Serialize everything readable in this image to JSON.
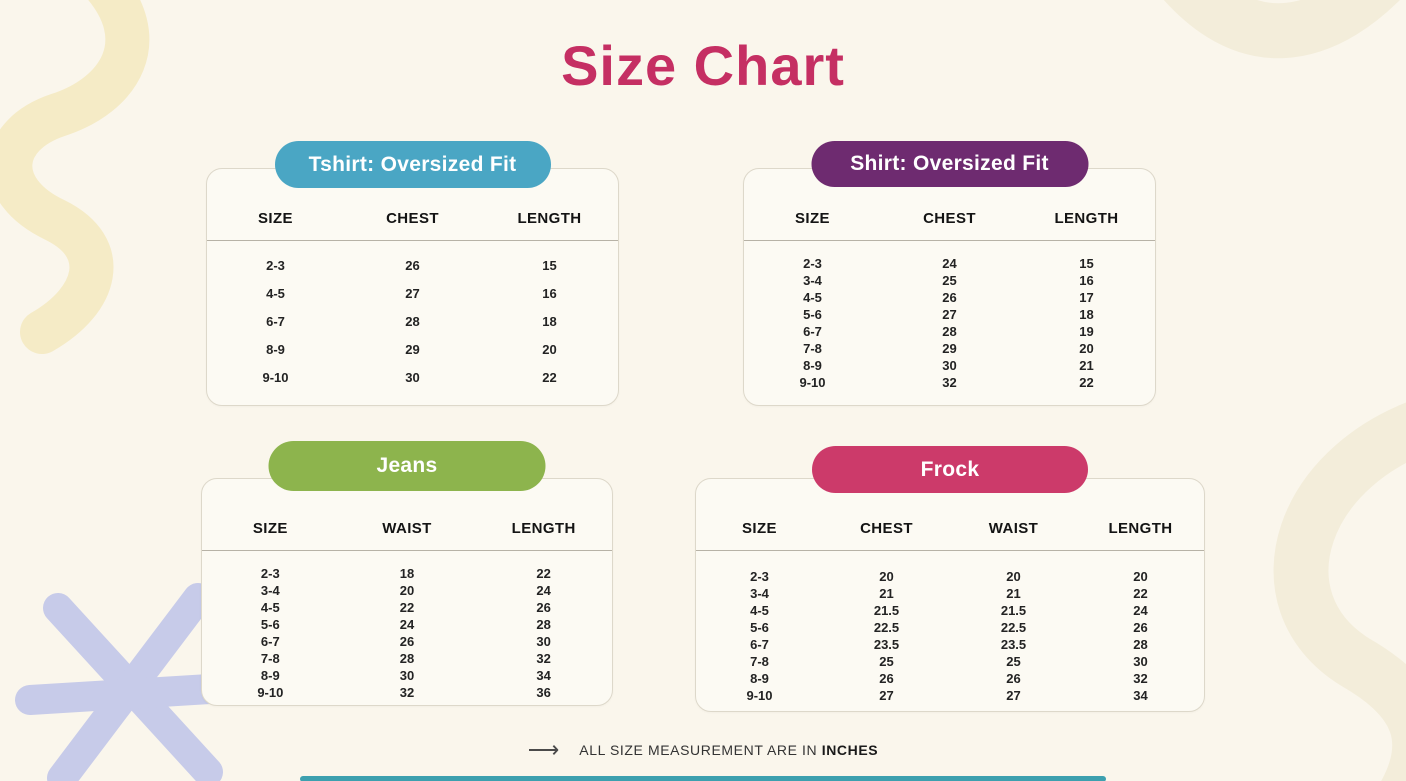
{
  "page": {
    "title": "Size Chart"
  },
  "colors": {
    "background": "#faf6ec",
    "title": "#c52f63",
    "tshirt_accent": "#4aa6c4",
    "shirt_accent": "#6e2b70",
    "jeans_accent": "#8db44d",
    "frock_accent": "#cc3a6a"
  },
  "icons": {
    "right_arrow": "⟶"
  },
  "footer": {
    "text": "ALL SIZE MEASUREMENT ARE IN",
    "unit": "INCHES"
  },
  "chart_data": [
    {
      "type": "table",
      "title": "Tshirt: Oversized Fit",
      "accent": "#4aa6c4",
      "columns": [
        "SIZE",
        "CHEST",
        "LENGTH"
      ],
      "rows": [
        [
          "2-3",
          "26",
          "15"
        ],
        [
          "4-5",
          "27",
          "16"
        ],
        [
          "6-7",
          "28",
          "18"
        ],
        [
          "8-9",
          "29",
          "20"
        ],
        [
          "9-10",
          "30",
          "22"
        ]
      ]
    },
    {
      "type": "table",
      "title": "Shirt: Oversized Fit",
      "accent": "#6e2b70",
      "columns": [
        "SIZE",
        "CHEST",
        "LENGTH"
      ],
      "rows": [
        [
          "2-3",
          "24",
          "15"
        ],
        [
          "3-4",
          "25",
          "16"
        ],
        [
          "4-5",
          "26",
          "17"
        ],
        [
          "5-6",
          "27",
          "18"
        ],
        [
          "6-7",
          "28",
          "19"
        ],
        [
          "7-8",
          "29",
          "20"
        ],
        [
          "8-9",
          "30",
          "21"
        ],
        [
          "9-10",
          "32",
          "22"
        ]
      ]
    },
    {
      "type": "table",
      "title": "Jeans",
      "accent": "#8db44d",
      "columns": [
        "SIZE",
        "WAIST",
        "LENGTH"
      ],
      "rows": [
        [
          "2-3",
          "18",
          "22"
        ],
        [
          "3-4",
          "20",
          "24"
        ],
        [
          "4-5",
          "22",
          "26"
        ],
        [
          "5-6",
          "24",
          "28"
        ],
        [
          "6-7",
          "26",
          "30"
        ],
        [
          "7-8",
          "28",
          "32"
        ],
        [
          "8-9",
          "30",
          "34"
        ],
        [
          "9-10",
          "32",
          "36"
        ]
      ]
    },
    {
      "type": "table",
      "title": "Frock",
      "accent": "#cc3a6a",
      "columns": [
        "SIZE",
        "CHEST",
        "WAIST",
        "LENGTH"
      ],
      "rows": [
        [
          "2-3",
          "20",
          "20",
          "20"
        ],
        [
          "3-4",
          "21",
          "21",
          "22"
        ],
        [
          "4-5",
          "21.5",
          "21.5",
          "24"
        ],
        [
          "5-6",
          "22.5",
          "22.5",
          "26"
        ],
        [
          "6-7",
          "23.5",
          "23.5",
          "28"
        ],
        [
          "7-8",
          "25",
          "25",
          "30"
        ],
        [
          "8-9",
          "26",
          "26",
          "32"
        ],
        [
          "9-10",
          "27",
          "27",
          "34"
        ]
      ]
    }
  ]
}
